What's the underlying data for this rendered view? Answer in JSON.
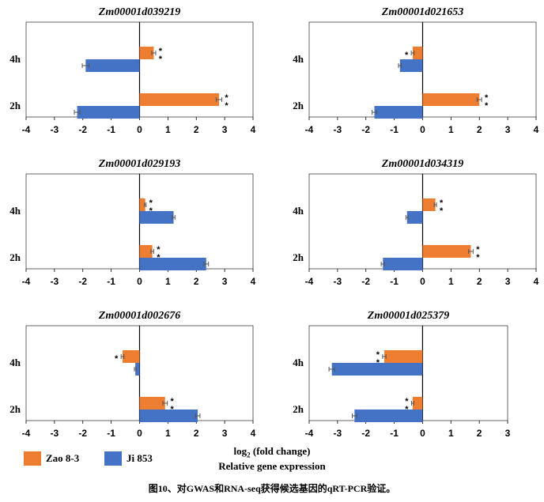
{
  "colors": {
    "series_a": "#ED7D31",
    "series_b": "#4472C4",
    "axis": "#000000",
    "errorbar": "#555555"
  },
  "legend": {
    "series_a": "Zao 8-3",
    "series_b": "Ji 853"
  },
  "xlabel": {
    "log": "log",
    "sub": "2",
    "rest": " (fold change)",
    "line2": "Relative gene expression"
  },
  "caption": "图10、对GWAS和RNA-seq获得候选基因的qRT-PCR验证。",
  "chart_data": [
    {
      "type": "bar",
      "orientation": "horizontal",
      "title": "Zm00001d039219",
      "categories": [
        "4h",
        "2h"
      ],
      "xlim": [
        -4,
        4
      ],
      "xticks": [
        -4,
        -3,
        -2,
        -1,
        0,
        1,
        2,
        3,
        4
      ],
      "series": [
        {
          "name": "Zao 8-3",
          "values": [
            0.5,
            2.8
          ],
          "err": [
            0.07,
            0.1
          ],
          "sig": [
            "**",
            "**"
          ]
        },
        {
          "name": "Ji 853",
          "values": [
            -1.9,
            -2.2
          ],
          "err": [
            0.12,
            0.1
          ],
          "sig": [
            "",
            ""
          ]
        }
      ]
    },
    {
      "type": "bar",
      "orientation": "horizontal",
      "title": "Zm00001d021653",
      "categories": [
        "4h",
        "2h"
      ],
      "xlim": [
        -4,
        4
      ],
      "xticks": [
        -4,
        -3,
        -2,
        -1,
        0,
        1,
        2,
        3,
        4
      ],
      "series": [
        {
          "name": "Zao 8-3",
          "values": [
            -0.35,
            2.0
          ],
          "err": [
            0.05,
            0.08
          ],
          "sig": [
            "*",
            "**"
          ]
        },
        {
          "name": "Ji 853",
          "values": [
            -0.8,
            -1.7
          ],
          "err": [
            0.05,
            0.08
          ],
          "sig": [
            "",
            ""
          ]
        }
      ]
    },
    {
      "type": "bar",
      "orientation": "horizontal",
      "title": "Zm00001d029193",
      "categories": [
        "4h",
        "2h"
      ],
      "xlim": [
        -4,
        4
      ],
      "xticks": [
        -4,
        -3,
        -2,
        -1,
        0,
        1,
        2,
        3,
        4
      ],
      "series": [
        {
          "name": "Zao 8-3",
          "values": [
            0.2,
            0.45
          ],
          "err": [
            0.03,
            0.05
          ],
          "sig": [
            "**",
            "**"
          ]
        },
        {
          "name": "Ji 853",
          "values": [
            1.2,
            2.35
          ],
          "err": [
            0.05,
            0.08
          ],
          "sig": [
            "",
            ""
          ]
        }
      ]
    },
    {
      "type": "bar",
      "orientation": "horizontal",
      "title": "Zm00001d034319",
      "categories": [
        "4h",
        "2h"
      ],
      "xlim": [
        -4,
        4
      ],
      "xticks": [
        -4,
        -3,
        -2,
        -1,
        0,
        1,
        2,
        3,
        4
      ],
      "series": [
        {
          "name": "Zao 8-3",
          "values": [
            0.45,
            1.7
          ],
          "err": [
            0.04,
            0.08
          ],
          "sig": [
            "**",
            "**"
          ]
        },
        {
          "name": "Ji 853",
          "values": [
            -0.55,
            -1.4
          ],
          "err": [
            0.04,
            0.06
          ],
          "sig": [
            "",
            ""
          ]
        }
      ]
    },
    {
      "type": "bar",
      "orientation": "horizontal",
      "title": "Zm00001d002676",
      "categories": [
        "4h",
        "2h"
      ],
      "xlim": [
        -4,
        4
      ],
      "xticks": [
        -4,
        -3,
        -2,
        -1,
        0,
        1,
        2,
        3,
        4
      ],
      "series": [
        {
          "name": "Zao 8-3",
          "values": [
            -0.6,
            0.9
          ],
          "err": [
            0.05,
            0.08
          ],
          "sig": [
            "*",
            "**"
          ]
        },
        {
          "name": "Ji 853",
          "values": [
            -0.15,
            2.05
          ],
          "err": [
            0.03,
            0.08
          ],
          "sig": [
            "",
            ""
          ]
        }
      ]
    },
    {
      "type": "bar",
      "orientation": "horizontal",
      "title": "Zm00001d025379",
      "categories": [
        "4h",
        "2h"
      ],
      "xlim": [
        -4,
        3
      ],
      "xticks": [
        -4,
        -3,
        -2,
        -1,
        0,
        1,
        2,
        3
      ],
      "series": [
        {
          "name": "Zao 8-3",
          "values": [
            -1.35,
            -0.35
          ],
          "err": [
            0.06,
            0.04
          ],
          "sig": [
            "**",
            "**"
          ]
        },
        {
          "name": "Ji 853",
          "values": [
            -3.2,
            -2.4
          ],
          "err": [
            0.1,
            0.08
          ],
          "sig": [
            "",
            ""
          ]
        }
      ]
    }
  ]
}
